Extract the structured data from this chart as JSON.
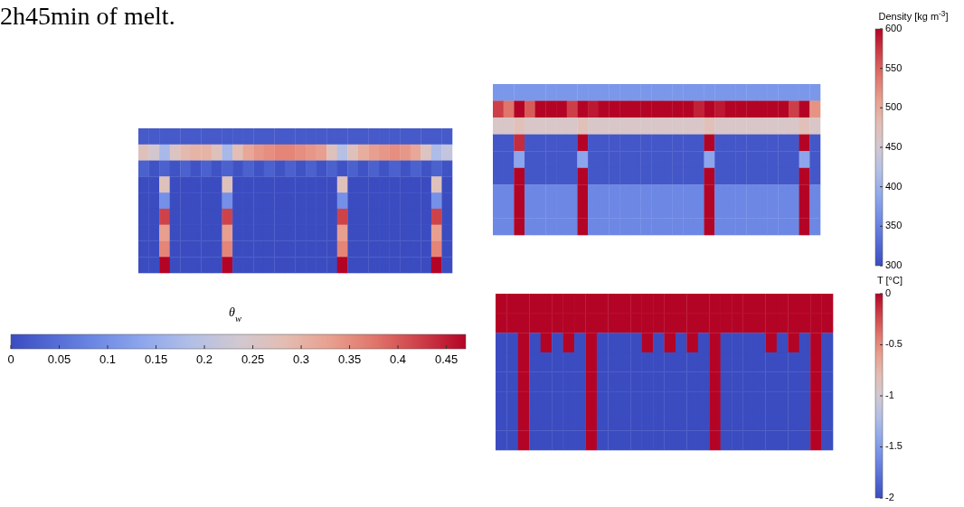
{
  "chart_data": [
    {
      "type": "heatmap",
      "clabel": "θ$_{w}$",
      "clim": [
        0,
        0.47
      ],
      "cticks": [
        0,
        0.05,
        0.1,
        0.15,
        0.2,
        0.25,
        0.3,
        0.35,
        0.4,
        0.45
      ],
      "annotations": [
        "2h45min of melt."
      ],
      "categories": [
        null,
        null,
        null,
        null,
        null,
        null,
        null,
        null,
        null,
        null,
        null,
        null,
        null,
        null,
        null,
        null,
        null,
        null,
        null,
        null,
        null,
        null,
        null,
        null,
        null,
        null,
        null,
        null,
        null,
        null
      ],
      "y_categories": [
        null,
        null,
        null,
        null,
        null,
        null,
        null,
        null,
        null
      ],
      "cells": [
        [
          0.02,
          0.02,
          0.02,
          0.02,
          0.02,
          0.02,
          0.02,
          0.02,
          0.02,
          0.02,
          0.02,
          0.02,
          0.02,
          0.02,
          0.02,
          0.02,
          0.02,
          0.02,
          0.02,
          0.02,
          0.02,
          0.02,
          0.02,
          0.02,
          0.02,
          0.02,
          0.02,
          0.02,
          0.02,
          0.02
        ],
        [
          0.27,
          0.24,
          0.17,
          0.26,
          0.29,
          0.3,
          0.3,
          0.27,
          0.17,
          0.28,
          0.32,
          0.34,
          0.35,
          0.36,
          0.36,
          0.35,
          0.34,
          0.33,
          0.27,
          0.19,
          0.27,
          0.31,
          0.33,
          0.34,
          0.35,
          0.34,
          0.32,
          0.26,
          0.18,
          0.21
        ],
        [
          0.03,
          0.01,
          0.03,
          0.01,
          0.03,
          0.01,
          0.03,
          0.01,
          0.03,
          0.01,
          0.03,
          0.01,
          0.03,
          0.01,
          0.03,
          0.01,
          0.03,
          0.01,
          0.03,
          0.01,
          0.03,
          0.01,
          0.03,
          0.01,
          0.03,
          0.01,
          0.03,
          0.01,
          0.03,
          0.01
        ],
        [
          0,
          0,
          0.27,
          0,
          0,
          0,
          0,
          0,
          0.27,
          0,
          0,
          0,
          0,
          0,
          0,
          0,
          0,
          0,
          0,
          0.27,
          0,
          0,
          0,
          0,
          0,
          0,
          0,
          0,
          0.27,
          0
        ],
        [
          0,
          0,
          0.1,
          0,
          0,
          0,
          0,
          0,
          0.1,
          0,
          0,
          0,
          0,
          0,
          0,
          0,
          0,
          0,
          0,
          0.1,
          0,
          0,
          0,
          0,
          0,
          0,
          0,
          0,
          0.1,
          0
        ],
        [
          0,
          0,
          0.42,
          0,
          0,
          0,
          0,
          0,
          0.42,
          0,
          0,
          0,
          0,
          0,
          0,
          0,
          0,
          0,
          0,
          0.42,
          0,
          0,
          0,
          0,
          0,
          0,
          0,
          0,
          0.42,
          0
        ],
        [
          0,
          0,
          0.33,
          0,
          0,
          0,
          0,
          0,
          0.33,
          0,
          0,
          0,
          0,
          0,
          0,
          0,
          0,
          0,
          0,
          0.33,
          0,
          0,
          0,
          0,
          0,
          0,
          0,
          0,
          0.33,
          0
        ],
        [
          0,
          0,
          0.36,
          0,
          0,
          0,
          0,
          0,
          0.36,
          0,
          0,
          0,
          0,
          0,
          0,
          0,
          0,
          0,
          0,
          0.36,
          0,
          0,
          0,
          0,
          0,
          0,
          0,
          0,
          0.36,
          0
        ],
        [
          0,
          0,
          0.47,
          0,
          0,
          0,
          0,
          0,
          0.47,
          0,
          0,
          0,
          0,
          0,
          0,
          0,
          0,
          0,
          0,
          0.47,
          0,
          0,
          0,
          0,
          0,
          0,
          0,
          0,
          0.47,
          0
        ]
      ]
    },
    {
      "type": "heatmap",
      "clabel": "Density [kg m$^{-3}$]",
      "clim": [
        300,
        600
      ],
      "cticks": [
        300,
        350,
        400,
        450,
        500,
        550,
        600
      ],
      "categories": [
        null,
        null,
        null,
        null,
        null,
        null,
        null,
        null,
        null,
        null,
        null,
        null,
        null,
        null,
        null,
        null,
        null,
        null,
        null,
        null,
        null,
        null,
        null,
        null,
        null,
        null,
        null,
        null,
        null,
        null,
        null
      ],
      "y_categories": [
        null,
        null,
        null,
        null,
        null,
        null,
        null,
        null,
        null
      ],
      "cells": [
        [
          370,
          370,
          370,
          370,
          370,
          370,
          370,
          370,
          370,
          370,
          370,
          370,
          370,
          370,
          370,
          370,
          370,
          370,
          370,
          370,
          370,
          370,
          370,
          370,
          370,
          370,
          370,
          370,
          370,
          370,
          370
        ],
        [
          570,
          540,
          600,
          555,
          600,
          600,
          600,
          570,
          600,
          590,
          600,
          600,
          600,
          600,
          600,
          600,
          600,
          600,
          600,
          585,
          600,
          590,
          600,
          600,
          600,
          600,
          600,
          600,
          570,
          600,
          520
        ],
        [
          460,
          460,
          475,
          460,
          460,
          460,
          460,
          460,
          475,
          460,
          460,
          460,
          460,
          460,
          460,
          460,
          460,
          460,
          460,
          460,
          475,
          460,
          460,
          460,
          460,
          460,
          460,
          460,
          460,
          475,
          460
        ],
        [
          310,
          310,
          580,
          310,
          310,
          310,
          310,
          310,
          600,
          310,
          310,
          310,
          310,
          310,
          310,
          310,
          310,
          310,
          310,
          310,
          600,
          310,
          310,
          310,
          310,
          310,
          310,
          310,
          310,
          600,
          310
        ],
        [
          310,
          310,
          385,
          310,
          310,
          310,
          310,
          310,
          385,
          310,
          310,
          310,
          310,
          310,
          310,
          310,
          310,
          310,
          310,
          310,
          385,
          310,
          310,
          310,
          310,
          310,
          310,
          310,
          310,
          385,
          310
        ],
        [
          310,
          310,
          600,
          310,
          310,
          310,
          310,
          310,
          600,
          310,
          310,
          310,
          310,
          310,
          310,
          310,
          310,
          310,
          310,
          310,
          600,
          310,
          310,
          310,
          310,
          310,
          310,
          310,
          310,
          600,
          310
        ],
        [
          355,
          355,
          600,
          355,
          355,
          355,
          355,
          355,
          600,
          355,
          355,
          355,
          355,
          355,
          355,
          355,
          355,
          355,
          355,
          355,
          600,
          355,
          355,
          355,
          355,
          355,
          355,
          355,
          355,
          600,
          355
        ],
        [
          355,
          355,
          600,
          355,
          355,
          355,
          355,
          355,
          600,
          355,
          355,
          355,
          355,
          355,
          355,
          355,
          355,
          355,
          355,
          355,
          600,
          355,
          355,
          355,
          355,
          355,
          355,
          355,
          355,
          600,
          355
        ],
        [
          355,
          355,
          600,
          355,
          355,
          355,
          355,
          355,
          600,
          355,
          355,
          355,
          355,
          355,
          355,
          355,
          355,
          355,
          355,
          355,
          600,
          355,
          355,
          355,
          355,
          355,
          355,
          355,
          355,
          600,
          355
        ]
      ]
    },
    {
      "type": "heatmap",
      "clabel": "T [°C]",
      "clim": [
        -2,
        0
      ],
      "cticks": [
        0,
        -0.5,
        -1,
        -1.5,
        -2
      ],
      "categories": [
        null,
        null,
        null,
        null,
        null,
        null,
        null,
        null,
        null,
        null,
        null,
        null,
        null,
        null,
        null,
        null,
        null,
        null,
        null,
        null,
        null,
        null,
        null,
        null,
        null,
        null,
        null,
        null,
        null,
        null
      ],
      "y_categories": [
        null,
        null,
        null,
        null,
        null,
        null,
        null,
        null
      ],
      "cells": [
        [
          0,
          0,
          0,
          0,
          0,
          0,
          0,
          0,
          0,
          0,
          0,
          0,
          0,
          0,
          0,
          0,
          0,
          0,
          0,
          0,
          0,
          0,
          0,
          0,
          0,
          0,
          0,
          0,
          0,
          0
        ],
        [
          0,
          0,
          0,
          0,
          0,
          0,
          0,
          0,
          0,
          0,
          0,
          0,
          0,
          0,
          0,
          0,
          0,
          0,
          0,
          0,
          0,
          0,
          0,
          0,
          0,
          0,
          0,
          0,
          0,
          0
        ],
        [
          -2,
          -2,
          0,
          -2,
          0,
          -2,
          0,
          -2,
          0,
          -2,
          -2,
          -2,
          -2,
          0,
          -2,
          0,
          -2,
          0,
          -2,
          0,
          -2,
          -2,
          -2,
          -2,
          0,
          -2,
          0,
          -2,
          0,
          -2
        ],
        [
          -2,
          -2,
          0,
          -2,
          -2,
          -2,
          -2,
          -2,
          0,
          -2,
          -2,
          -2,
          -2,
          -2,
          -2,
          -2,
          -2,
          -2,
          -2,
          0,
          -2,
          -2,
          -2,
          -2,
          -2,
          -2,
          -2,
          -2,
          0,
          -2
        ],
        [
          -2,
          -2,
          0,
          -2,
          -2,
          -2,
          -2,
          -2,
          0,
          -2,
          -2,
          -2,
          -2,
          -2,
          -2,
          -2,
          -2,
          -2,
          -2,
          0,
          -2,
          -2,
          -2,
          -2,
          -2,
          -2,
          -2,
          -2,
          0,
          -2
        ],
        [
          -2,
          -2,
          0,
          -2,
          -2,
          -2,
          -2,
          -2,
          0,
          -2,
          -2,
          -2,
          -2,
          -2,
          -2,
          -2,
          -2,
          -2,
          -2,
          0,
          -2,
          -2,
          -2,
          -2,
          -2,
          -2,
          -2,
          -2,
          0,
          -2
        ],
        [
          -2,
          -2,
          0,
          -2,
          -2,
          -2,
          -2,
          -2,
          0,
          -2,
          -2,
          -2,
          -2,
          -2,
          -2,
          -2,
          -2,
          -2,
          -2,
          0,
          -2,
          -2,
          -2,
          -2,
          -2,
          -2,
          -2,
          -2,
          0,
          -2
        ],
        [
          -2,
          -2,
          0,
          -2,
          -2,
          -2,
          -2,
          -2,
          0,
          -2,
          -2,
          -2,
          -2,
          -2,
          -2,
          -2,
          -2,
          -2,
          -2,
          0,
          -2,
          -2,
          -2,
          -2,
          -2,
          -2,
          -2,
          -2,
          0,
          -2
        ]
      ]
    }
  ]
}
